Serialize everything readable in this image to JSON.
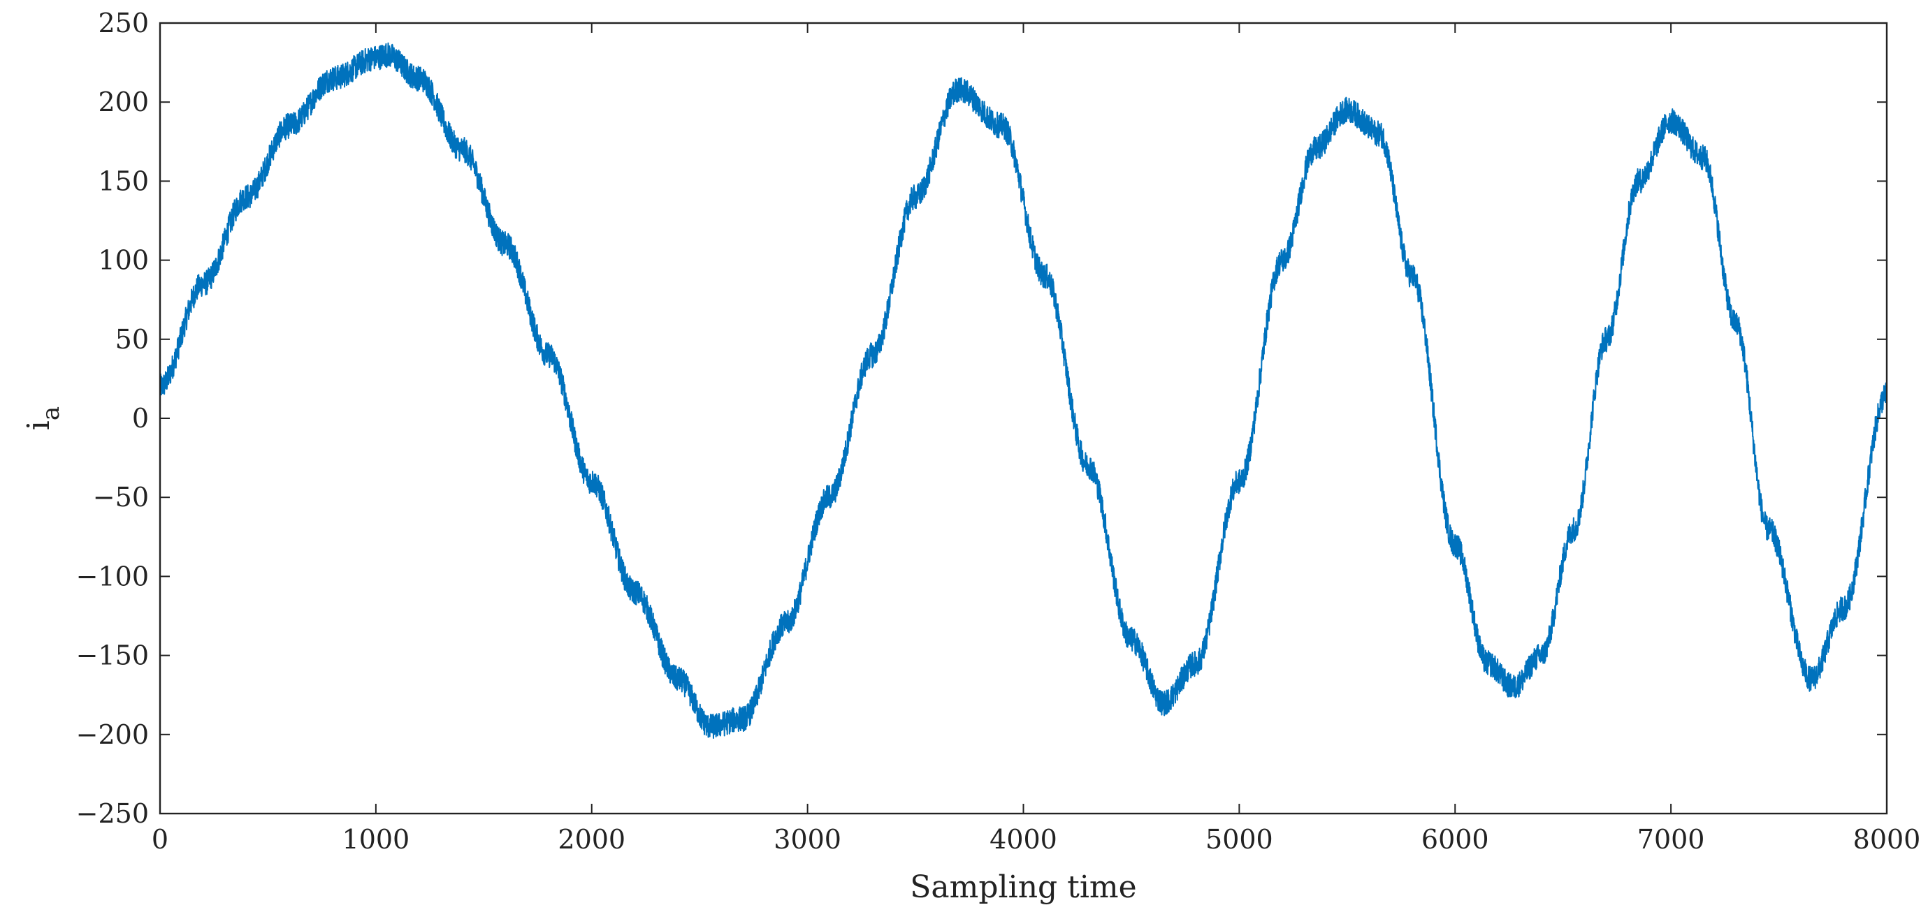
{
  "chart_data": {
    "type": "line",
    "xlabel": "Sampling time",
    "ylabel": "i",
    "ylabel_subscript": "a",
    "xlim": [
      0,
      8000
    ],
    "ylim": [
      -250,
      250
    ],
    "xticks": [
      0,
      1000,
      2000,
      3000,
      4000,
      5000,
      6000,
      7000,
      8000
    ],
    "yticks": [
      -250,
      -200,
      -150,
      -100,
      -50,
      0,
      50,
      100,
      150,
      200,
      250
    ],
    "xtick_labels": [
      "0",
      "1000",
      "2000",
      "3000",
      "4000",
      "5000",
      "6000",
      "7000",
      "8000"
    ],
    "ytick_labels": [
      "−250",
      "−200",
      "−150",
      "−100",
      "−50",
      "0",
      "50",
      "100",
      "150",
      "200",
      "250"
    ],
    "grid": false,
    "noise_amplitude": 8,
    "series": [
      {
        "color": "#0072BD",
        "x": [
          0,
          200,
          400,
          600,
          800,
          1000,
          1050,
          1200,
          1400,
          1600,
          1800,
          2000,
          2200,
          2400,
          2550,
          2700,
          2900,
          3100,
          3300,
          3500,
          3700,
          3900,
          4100,
          4300,
          4500,
          4650,
          4800,
          5000,
          5200,
          5350,
          5500,
          5650,
          5800,
          6000,
          6150,
          6270,
          6400,
          6550,
          6700,
          6850,
          7000,
          7150,
          7300,
          7450,
          7650,
          7800,
          8000
        ],
        "y": [
          20,
          85,
          140,
          185,
          215,
          228,
          230,
          215,
          170,
          110,
          40,
          -40,
          -110,
          -165,
          -195,
          -190,
          -130,
          -50,
          40,
          140,
          208,
          185,
          90,
          -30,
          -140,
          -180,
          -155,
          -40,
          100,
          170,
          195,
          180,
          90,
          -80,
          -155,
          -170,
          -150,
          -70,
          50,
          150,
          188,
          165,
          60,
          -70,
          -165,
          -120,
          15
        ]
      }
    ]
  }
}
